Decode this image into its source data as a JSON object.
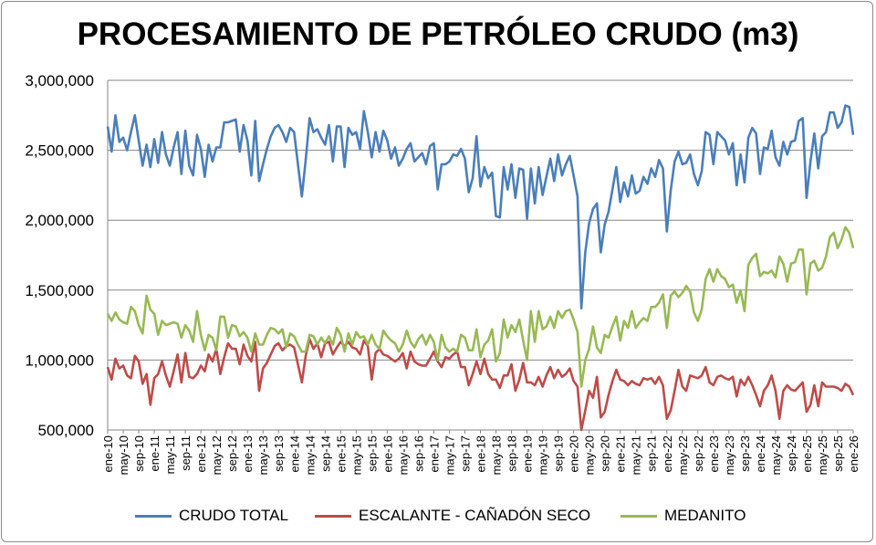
{
  "chart_data": {
    "type": "line",
    "title": "PROCESAMIENTO DE PETRÓLEO CRUDO (m3)",
    "xlabel": "",
    "ylabel": "",
    "ylim": [
      500000,
      3000000
    ],
    "y_ticks": [
      500000,
      1000000,
      1500000,
      2000000,
      2500000,
      3000000
    ],
    "y_tick_labels": [
      "500,000",
      "1,000,000",
      "1,500,000",
      "2,000,000",
      "2,500,000",
      "3,000,000"
    ],
    "grid": "horizontal",
    "legend_position": "bottom",
    "x_range": [
      "ene-10",
      "ene-26"
    ],
    "x_frequency": "monthly",
    "x_tick_labels": [
      "ene-10",
      "may-10",
      "sep-10",
      "ene-11",
      "may-11",
      "sep-11",
      "ene-12",
      "may-12",
      "sep-12",
      "ene-13",
      "may-13",
      "sep-13",
      "ene-14",
      "may-14",
      "sep-14",
      "ene-15",
      "may-15",
      "sep-15",
      "ene-16",
      "may-16",
      "sep-16",
      "ene-17",
      "may-17",
      "sep-17",
      "ene-18",
      "may-18",
      "sep-18",
      "ene-19",
      "may-19",
      "sep-19",
      "ene-20",
      "may-20",
      "sep-20",
      "ene-21",
      "may-21",
      "sep-21",
      "ene-22",
      "may-22",
      "sep-22",
      "ene-23",
      "may-23",
      "sep-23",
      "ene-24",
      "may-24",
      "sep-24",
      "ene-25",
      "may-25",
      "sep-25",
      "ene-26"
    ],
    "series": [
      {
        "name": "CRUDO TOTAL",
        "color": "#4a7ebb",
        "values": [
          2670000,
          2490000,
          2750000,
          2560000,
          2590000,
          2500000,
          2630000,
          2750000,
          2570000,
          2390000,
          2540000,
          2380000,
          2580000,
          2410000,
          2630000,
          2470000,
          2390000,
          2520000,
          2630000,
          2330000,
          2640000,
          2390000,
          2320000,
          2610000,
          2510000,
          2310000,
          2540000,
          2420000,
          2520000,
          2520000,
          2700000,
          2700000,
          2710000,
          2720000,
          2490000,
          2680000,
          2570000,
          2320000,
          2710000,
          2280000,
          2400000,
          2510000,
          2600000,
          2660000,
          2680000,
          2630000,
          2560000,
          2660000,
          2630000,
          2400000,
          2170000,
          2430000,
          2730000,
          2630000,
          2650000,
          2590000,
          2540000,
          2680000,
          2420000,
          2670000,
          2670000,
          2380000,
          2660000,
          2610000,
          2630000,
          2510000,
          2780000,
          2630000,
          2450000,
          2630000,
          2490000,
          2640000,
          2570000,
          2440000,
          2520000,
          2390000,
          2440000,
          2510000,
          2550000,
          2420000,
          2450000,
          2480000,
          2400000,
          2530000,
          2550000,
          2220000,
          2400000,
          2400000,
          2420000,
          2470000,
          2460000,
          2510000,
          2440000,
          2200000,
          2300000,
          2600000,
          2240000,
          2380000,
          2300000,
          2340000,
          2030000,
          2020000,
          2380000,
          2220000,
          2400000,
          2160000,
          2370000,
          2360000,
          2010000,
          2370000,
          2120000,
          2380000,
          2180000,
          2310000,
          2440000,
          2280000,
          2470000,
          2320000,
          2400000,
          2460000,
          2320000,
          2170000,
          1370000,
          1770000,
          1980000,
          2080000,
          2120000,
          1770000,
          1970000,
          2060000,
          2220000,
          2380000,
          2130000,
          2270000,
          2170000,
          2320000,
          2190000,
          2210000,
          2310000,
          2260000,
          2370000,
          2310000,
          2430000,
          2370000,
          1920000,
          2210000,
          2420000,
          2490000,
          2400000,
          2410000,
          2470000,
          2330000,
          2250000,
          2350000,
          2630000,
          2610000,
          2400000,
          2630000,
          2600000,
          2570000,
          2470000,
          2550000,
          2250000,
          2470000,
          2270000,
          2590000,
          2660000,
          2620000,
          2330000,
          2520000,
          2510000,
          2640000,
          2450000,
          2390000,
          2560000,
          2470000,
          2560000,
          2570000,
          2710000,
          2730000,
          2160000,
          2420000,
          2620000,
          2370000,
          2600000,
          2630000,
          2770000,
          2770000,
          2660000,
          2700000,
          2820000,
          2810000,
          2610000
        ]
      },
      {
        "name": "ESCALANTE - CAÑADÓN SECO",
        "color": "#be4b48",
        "values": [
          950000,
          860000,
          1010000,
          940000,
          960000,
          890000,
          870000,
          1030000,
          990000,
          830000,
          900000,
          680000,
          870000,
          900000,
          990000,
          890000,
          810000,
          920000,
          1040000,
          840000,
          1050000,
          880000,
          870000,
          900000,
          960000,
          920000,
          1040000,
          990000,
          1080000,
          900000,
          1020000,
          1120000,
          1080000,
          1080000,
          970000,
          1110000,
          1030000,
          990000,
          1130000,
          780000,
          940000,
          980000,
          1040000,
          1100000,
          1120000,
          1070000,
          1100000,
          1110000,
          1090000,
          970000,
          840000,
          1030000,
          1150000,
          1080000,
          1120000,
          1020000,
          1120000,
          1130000,
          1040000,
          1090000,
          1130000,
          1100000,
          1130000,
          1090000,
          1080000,
          1040000,
          1140000,
          1100000,
          860000,
          1050000,
          1080000,
          1040000,
          1030000,
          1010000,
          990000,
          1010000,
          1050000,
          940000,
          1060000,
          990000,
          970000,
          960000,
          960000,
          1010000,
          1060000,
          990000,
          950000,
          1020000,
          1010000,
          1040000,
          1060000,
          950000,
          950000,
          820000,
          900000,
          990000,
          900000,
          1010000,
          900000,
          860000,
          860000,
          800000,
          890000,
          890000,
          970000,
          780000,
          860000,
          980000,
          840000,
          840000,
          820000,
          880000,
          810000,
          890000,
          950000,
          870000,
          930000,
          880000,
          900000,
          940000,
          850000,
          810000,
          500000,
          640000,
          780000,
          730000,
          880000,
          590000,
          630000,
          750000,
          850000,
          930000,
          860000,
          850000,
          820000,
          850000,
          830000,
          820000,
          870000,
          860000,
          870000,
          830000,
          880000,
          820000,
          580000,
          640000,
          780000,
          930000,
          810000,
          780000,
          890000,
          880000,
          870000,
          890000,
          950000,
          840000,
          820000,
          880000,
          890000,
          870000,
          860000,
          880000,
          740000,
          860000,
          820000,
          880000,
          820000,
          750000,
          670000,
          780000,
          820000,
          890000,
          780000,
          580000,
          780000,
          820000,
          790000,
          780000,
          810000,
          840000,
          630000,
          680000,
          820000,
          670000,
          840000,
          810000,
          810000,
          810000,
          800000,
          780000,
          830000,
          810000,
          750000
        ]
      },
      {
        "name": "MEDANITO",
        "color": "#98b954",
        "values": [
          1330000,
          1280000,
          1340000,
          1290000,
          1270000,
          1260000,
          1380000,
          1350000,
          1250000,
          1190000,
          1460000,
          1360000,
          1330000,
          1180000,
          1280000,
          1250000,
          1260000,
          1270000,
          1260000,
          1160000,
          1250000,
          1210000,
          1130000,
          1350000,
          1180000,
          1070000,
          1180000,
          1160000,
          1070000,
          1310000,
          1310000,
          1160000,
          1250000,
          1240000,
          1170000,
          1200000,
          1160000,
          1060000,
          1190000,
          1110000,
          1110000,
          1180000,
          1230000,
          1220000,
          1190000,
          1220000,
          1090000,
          1190000,
          1170000,
          1110000,
          1060000,
          1060000,
          1180000,
          1170000,
          1110000,
          1160000,
          1120000,
          1170000,
          1110000,
          1230000,
          1180000,
          1060000,
          1190000,
          1110000,
          1200000,
          1160000,
          1170000,
          1110000,
          1180000,
          1110000,
          1080000,
          1210000,
          1170000,
          1140000,
          1120000,
          1060000,
          1110000,
          1210000,
          1130000,
          1090000,
          1150000,
          1180000,
          1110000,
          1180000,
          1130000,
          1000000,
          1180000,
          1090000,
          1060000,
          1080000,
          1060000,
          1180000,
          1160000,
          1070000,
          1070000,
          1220000,
          1020000,
          1110000,
          1140000,
          1220000,
          990000,
          1050000,
          1290000,
          1160000,
          1250000,
          1200000,
          1290000,
          1140000,
          1000000,
          1350000,
          1130000,
          1350000,
          1220000,
          1240000,
          1310000,
          1230000,
          1350000,
          1300000,
          1350000,
          1360000,
          1290000,
          1200000,
          810000,
          1000000,
          1080000,
          1240000,
          1090000,
          1050000,
          1180000,
          1160000,
          1240000,
          1310000,
          1140000,
          1280000,
          1230000,
          1350000,
          1230000,
          1270000,
          1300000,
          1280000,
          1380000,
          1380000,
          1410000,
          1470000,
          1230000,
          1460000,
          1490000,
          1450000,
          1480000,
          1530000,
          1490000,
          1340000,
          1280000,
          1360000,
          1580000,
          1650000,
          1560000,
          1650000,
          1600000,
          1580000,
          1520000,
          1540000,
          1410000,
          1500000,
          1350000,
          1680000,
          1730000,
          1760000,
          1600000,
          1630000,
          1620000,
          1640000,
          1590000,
          1740000,
          1690000,
          1560000,
          1690000,
          1700000,
          1790000,
          1790000,
          1470000,
          1690000,
          1710000,
          1640000,
          1660000,
          1740000,
          1880000,
          1910000,
          1800000,
          1860000,
          1950000,
          1910000,
          1800000
        ]
      }
    ]
  }
}
